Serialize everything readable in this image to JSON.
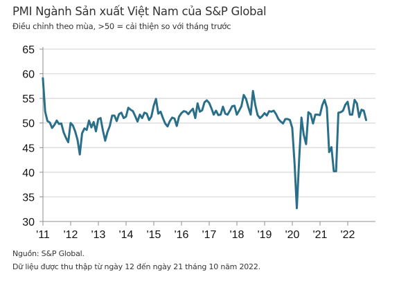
{
  "header": {
    "title": "PMI Ngành Sản xuất Việt Nam của S&P Global",
    "subtitle": "Điều chỉnh theo mùa, >50 = cải thiện so với tháng trước"
  },
  "footer": {
    "source": "Nguồn: S&P Global.",
    "collection_note": "Dữ liệu được thu thập từ ngày 12 đến ngày 21 tháng 10 năm 2022."
  },
  "colors": {
    "line": "#2a6f8a",
    "grid": "#d9d9d9",
    "axis": "#8c8c8c"
  },
  "chart_data": {
    "type": "line",
    "title": "PMI Ngành Sản xuất Việt Nam của S&P Global",
    "subtitle": "Điều chỉnh theo mùa, >50 = cải thiện so với tháng trước",
    "xlabel": "",
    "ylabel": "",
    "ylim": [
      30,
      65
    ],
    "yticks": [
      30,
      35,
      40,
      45,
      50,
      55,
      60,
      65
    ],
    "ytick_labels": [
      "30",
      "35",
      "40",
      "45",
      "50",
      "55",
      "60",
      "65"
    ],
    "xlim": [
      2011,
      2023
    ],
    "xticks": [
      2011,
      2012,
      2013,
      2014,
      2015,
      2016,
      2017,
      2018,
      2019,
      2020,
      2021,
      2022
    ],
    "xtick_labels": [
      "'11",
      "'12",
      "'13",
      "'14",
      "'15",
      "'16",
      "'17",
      "'18",
      "'19",
      "'20",
      "'21",
      "'22"
    ],
    "grid": true,
    "legend": "none",
    "series": [
      {
        "name": "PMI",
        "start": "2011-03",
        "frequency": "monthly",
        "values": [
          59.1,
          52.3,
          50.4,
          50.1,
          49.0,
          49.6,
          50.5,
          49.8,
          49.9,
          48.1,
          47.0,
          46.1,
          50.0,
          49.5,
          48.3,
          46.6,
          43.6,
          47.9,
          48.9,
          48.6,
          50.5,
          49.1,
          50.2,
          48.3,
          50.8,
          51.0,
          48.5,
          46.4,
          48.2,
          49.4,
          51.5,
          51.5,
          50.4,
          51.8,
          52.1,
          51.0,
          51.3,
          53.1,
          52.7,
          52.4,
          51.4,
          50.3,
          51.7,
          51.0,
          52.1,
          51.9,
          50.6,
          51.3,
          53.5,
          54.9,
          51.9,
          52.3,
          51.0,
          49.9,
          49.3,
          50.4,
          51.1,
          50.9,
          49.4,
          51.3,
          52.0,
          52.4,
          52.3,
          51.8,
          52.4,
          52.9,
          51.0,
          54.0,
          52.3,
          52.6,
          54.2,
          54.6,
          54.1,
          53.0,
          51.7,
          52.5,
          51.6,
          51.7,
          53.3,
          51.9,
          51.7,
          52.5,
          53.4,
          53.5,
          51.7,
          52.5,
          53.4,
          55.7,
          54.9,
          53.2,
          51.7,
          56.5,
          53.7,
          51.6,
          51.0,
          51.4,
          52.0,
          51.5,
          52.4,
          52.3,
          52.5,
          51.8,
          50.8,
          50.3,
          49.9,
          50.8,
          50.8,
          50.6,
          49.0,
          41.9,
          32.7,
          42.7,
          51.1,
          47.6,
          45.7,
          52.2,
          51.8,
          49.9,
          51.7,
          51.7,
          51.6,
          53.6,
          54.7,
          53.1,
          44.1,
          45.1,
          40.2,
          40.2,
          52.1,
          52.2,
          52.5,
          53.7,
          54.3,
          51.7,
          51.7,
          54.7,
          54.0,
          51.2,
          52.7,
          52.5,
          50.6
        ]
      }
    ]
  }
}
